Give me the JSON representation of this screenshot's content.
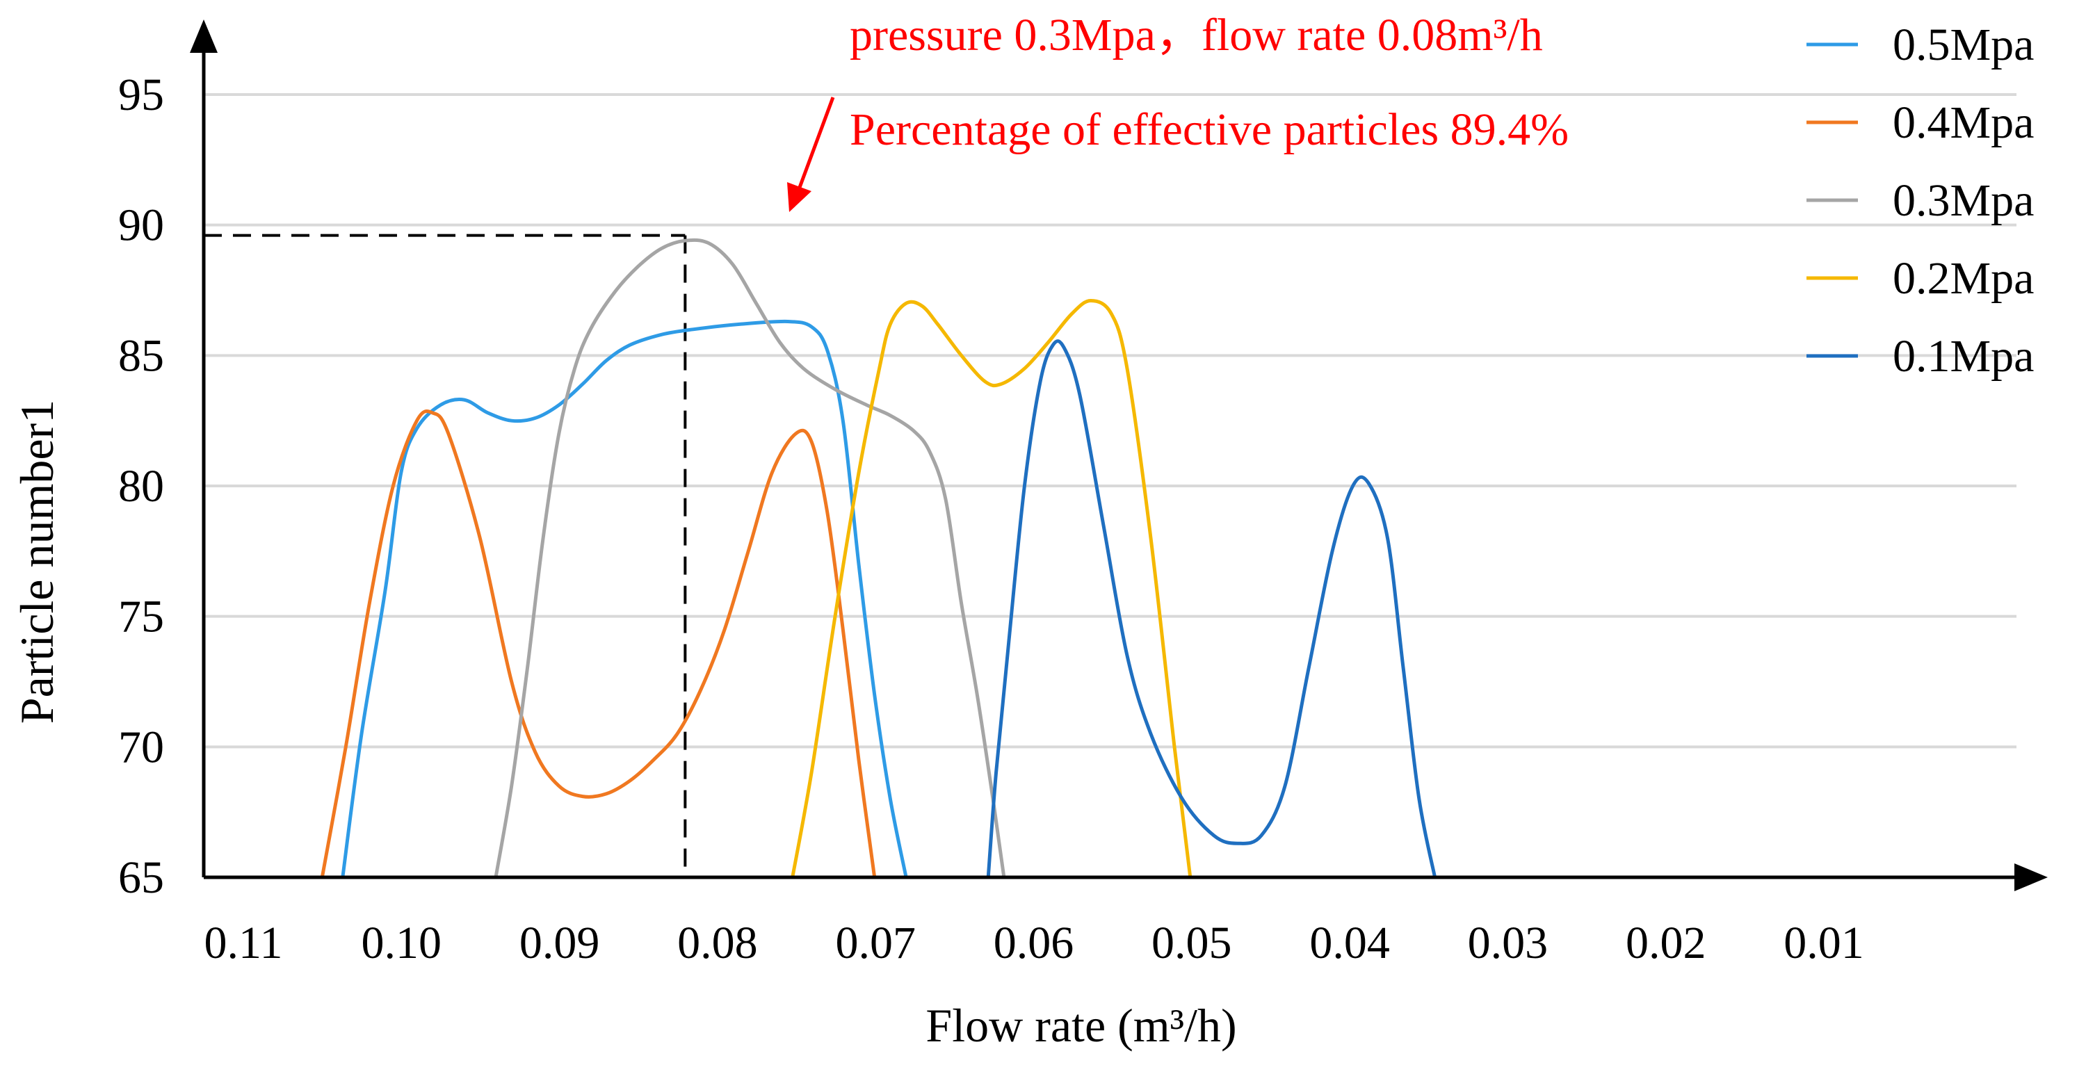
{
  "chart_data": {
    "type": "line",
    "xlabel": "Flow rate (m³/h)",
    "ylabel": "Particle number1",
    "xlim": [
      0.11,
      0.0
    ],
    "ylim": [
      65,
      97
    ],
    "x_ticks": [
      {
        "value": 0.11,
        "label": "0.11"
      },
      {
        "value": 0.1,
        "label": "0.10"
      },
      {
        "value": 0.09,
        "label": "0.09"
      },
      {
        "value": 0.08,
        "label": "0.08"
      },
      {
        "value": 0.07,
        "label": "0.07"
      },
      {
        "value": 0.06,
        "label": "0.06"
      },
      {
        "value": 0.05,
        "label": "0.05"
      },
      {
        "value": 0.04,
        "label": "0.04"
      },
      {
        "value": 0.03,
        "label": "0.03"
      },
      {
        "value": 0.02,
        "label": "0.02"
      },
      {
        "value": 0.01,
        "label": "0.01"
      }
    ],
    "y_ticks": [
      {
        "value": 65,
        "label": "65"
      },
      {
        "value": 70,
        "label": "70"
      },
      {
        "value": 75,
        "label": "75"
      },
      {
        "value": 80,
        "label": "80"
      },
      {
        "value": 85,
        "label": "85"
      },
      {
        "value": 90,
        "label": "90"
      },
      {
        "value": 95,
        "label": "95"
      }
    ],
    "grid": "horizontal",
    "legend_position": "top-right",
    "series": [
      {
        "name": "0.5Mpa",
        "color": "#2e9be6",
        "points": [
          [
            0.1012,
            65
          ],
          [
            0.1,
            70.5
          ],
          [
            0.0985,
            76
          ],
          [
            0.0975,
            80.5
          ],
          [
            0.0965,
            82.2
          ],
          [
            0.095,
            83.1
          ],
          [
            0.0935,
            83.3
          ],
          [
            0.092,
            82.8
          ],
          [
            0.0905,
            82.5
          ],
          [
            0.089,
            82.6
          ],
          [
            0.0875,
            83.1
          ],
          [
            0.086,
            83.9
          ],
          [
            0.0845,
            84.8
          ],
          [
            0.083,
            85.4
          ],
          [
            0.081,
            85.8
          ],
          [
            0.079,
            86.0
          ],
          [
            0.076,
            86.2
          ],
          [
            0.073,
            86.3
          ],
          [
            0.0715,
            86.1
          ],
          [
            0.0705,
            85.2
          ],
          [
            0.0695,
            82.5
          ],
          [
            0.0685,
            77
          ],
          [
            0.0675,
            72
          ],
          [
            0.0665,
            68
          ],
          [
            0.0655,
            65
          ]
        ]
      },
      {
        "name": "0.4Mpa",
        "color": "#f07820",
        "points": [
          [
            0.1025,
            65
          ],
          [
            0.101,
            70
          ],
          [
            0.0995,
            75.5
          ],
          [
            0.098,
            80
          ],
          [
            0.0965,
            82.5
          ],
          [
            0.0955,
            82.8
          ],
          [
            0.0945,
            82
          ],
          [
            0.0925,
            78
          ],
          [
            0.0905,
            72.5
          ],
          [
            0.089,
            69.8
          ],
          [
            0.0875,
            68.5
          ],
          [
            0.086,
            68.1
          ],
          [
            0.0845,
            68.2
          ],
          [
            0.083,
            68.7
          ],
          [
            0.0815,
            69.5
          ],
          [
            0.08,
            70.5
          ],
          [
            0.0785,
            72.2
          ],
          [
            0.077,
            74.5
          ],
          [
            0.0755,
            77.5
          ],
          [
            0.074,
            80.5
          ],
          [
            0.0725,
            82.0
          ],
          [
            0.0715,
            81.7
          ],
          [
            0.0705,
            79
          ],
          [
            0.0695,
            74.5
          ],
          [
            0.0685,
            69.5
          ],
          [
            0.0675,
            65
          ]
        ]
      },
      {
        "name": "0.3Mpa",
        "color": "#a5a5a5",
        "points": [
          [
            0.0915,
            65
          ],
          [
            0.0905,
            68.5
          ],
          [
            0.0895,
            73
          ],
          [
            0.0885,
            78
          ],
          [
            0.0875,
            82
          ],
          [
            0.0865,
            84.5
          ],
          [
            0.0855,
            86
          ],
          [
            0.084,
            87.4
          ],
          [
            0.0825,
            88.4
          ],
          [
            0.081,
            89.1
          ],
          [
            0.0795,
            89.4
          ],
          [
            0.078,
            89.3
          ],
          [
            0.0765,
            88.5
          ],
          [
            0.075,
            87
          ],
          [
            0.0735,
            85.5
          ],
          [
            0.072,
            84.5
          ],
          [
            0.07,
            83.7
          ],
          [
            0.068,
            83.1
          ],
          [
            0.0665,
            82.7
          ],
          [
            0.065,
            82.1
          ],
          [
            0.064,
            81.3
          ],
          [
            0.063,
            79.5
          ],
          [
            0.062,
            75.5
          ],
          [
            0.061,
            72
          ],
          [
            0.06,
            68
          ],
          [
            0.0593,
            65
          ]
        ]
      },
      {
        "name": "0.2Mpa",
        "color": "#f5b800",
        "points": [
          [
            0.0727,
            65
          ],
          [
            0.0715,
            69
          ],
          [
            0.07,
            75
          ],
          [
            0.0685,
            80.5
          ],
          [
            0.0672,
            84.5
          ],
          [
            0.0665,
            86.2
          ],
          [
            0.0655,
            87.0
          ],
          [
            0.0645,
            86.9
          ],
          [
            0.0635,
            86.2
          ],
          [
            0.062,
            85
          ],
          [
            0.0605,
            84
          ],
          [
            0.0595,
            83.9
          ],
          [
            0.058,
            84.5
          ],
          [
            0.0565,
            85.5
          ],
          [
            0.055,
            86.6
          ],
          [
            0.0538,
            87.1
          ],
          [
            0.0525,
            86.6
          ],
          [
            0.0515,
            84.5
          ],
          [
            0.05,
            78
          ],
          [
            0.0485,
            70
          ],
          [
            0.0475,
            65
          ]
        ]
      },
      {
        "name": "0.1Mpa",
        "color": "#1f6fc0",
        "points": [
          [
            0.0603,
            65
          ],
          [
            0.0598,
            69
          ],
          [
            0.059,
            74
          ],
          [
            0.058,
            80
          ],
          [
            0.057,
            84
          ],
          [
            0.0562,
            85.4
          ],
          [
            0.0555,
            85.3
          ],
          [
            0.0545,
            83.5
          ],
          [
            0.053,
            78.5
          ],
          [
            0.0515,
            73.5
          ],
          [
            0.05,
            70.5
          ],
          [
            0.048,
            68
          ],
          [
            0.046,
            66.6
          ],
          [
            0.0445,
            66.3
          ],
          [
            0.043,
            66.6
          ],
          [
            0.0415,
            68.5
          ],
          [
            0.04,
            73
          ],
          [
            0.0385,
            77.5
          ],
          [
            0.0372,
            80.0
          ],
          [
            0.0362,
            80.1
          ],
          [
            0.035,
            78
          ],
          [
            0.034,
            73
          ],
          [
            0.033,
            68
          ],
          [
            0.032,
            65
          ]
        ]
      }
    ],
    "reference_lines": {
      "x": 0.0795,
      "y": 89.6
    },
    "annotations": {
      "line1": "pressure 0.3Mpa，flow rate 0.08m³/h",
      "line2": "Percentage of effective particles 89.4%",
      "color": "#ff0000"
    }
  }
}
